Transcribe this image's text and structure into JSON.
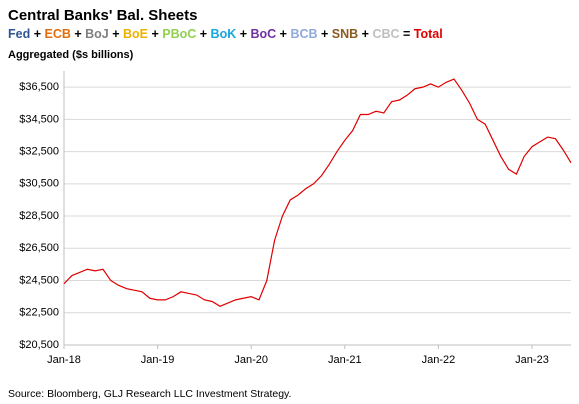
{
  "chart_data": {
    "type": "line",
    "title": "Central Banks' Bal. Sheets",
    "legend_items": [
      {
        "name": "Fed",
        "color": "#2f5597"
      },
      {
        "name": "ECB",
        "color": "#e46c0a"
      },
      {
        "name": "BoJ",
        "color": "#7f7f7f"
      },
      {
        "name": "BoE",
        "color": "#f0b000"
      },
      {
        "name": "PBoC",
        "color": "#92d050"
      },
      {
        "name": "BoK",
        "color": "#16a6e0"
      },
      {
        "name": "BoC",
        "color": "#7030a0"
      },
      {
        "name": "BCB",
        "color": "#8faadc"
      },
      {
        "name": "SNB",
        "color": "#8b5a1e"
      },
      {
        "name": "CBC",
        "color": "#c0c0c0"
      }
    ],
    "joiner": "+",
    "equals": "=",
    "y_label": "Aggregated ($s billions)",
    "source": "Source: Bloomberg, GLJ Research LLC Investment Strategy.",
    "x": [
      "2018-01",
      "2018-02",
      "2018-03",
      "2018-04",
      "2018-05",
      "2018-06",
      "2018-07",
      "2018-08",
      "2018-09",
      "2018-10",
      "2018-11",
      "2018-12",
      "2019-01",
      "2019-02",
      "2019-03",
      "2019-04",
      "2019-05",
      "2019-06",
      "2019-07",
      "2019-08",
      "2019-09",
      "2019-10",
      "2019-11",
      "2019-12",
      "2020-01",
      "2020-02",
      "2020-03",
      "2020-04",
      "2020-05",
      "2020-06",
      "2020-07",
      "2020-08",
      "2020-09",
      "2020-10",
      "2020-11",
      "2020-12",
      "2021-01",
      "2021-02",
      "2021-03",
      "2021-04",
      "2021-05",
      "2021-06",
      "2021-07",
      "2021-08",
      "2021-09",
      "2021-10",
      "2021-11",
      "2021-12",
      "2022-01",
      "2022-02",
      "2022-03",
      "2022-04",
      "2022-05",
      "2022-06",
      "2022-07",
      "2022-08",
      "2022-09",
      "2022-10",
      "2022-11",
      "2022-12",
      "2023-01",
      "2023-02",
      "2023-03",
      "2023-04",
      "2023-05",
      "2023-06"
    ],
    "series": [
      {
        "name": "Total",
        "color": "#e00000",
        "values": [
          24300,
          24800,
          25000,
          25200,
          25100,
          25200,
          24500,
          24200,
          24000,
          23900,
          23800,
          23400,
          23300,
          23300,
          23500,
          23800,
          23700,
          23600,
          23300,
          23200,
          22900,
          23100,
          23300,
          23400,
          23500,
          23300,
          24500,
          27000,
          28500,
          29500,
          29800,
          30200,
          30500,
          31000,
          31700,
          32500,
          33200,
          33800,
          34800,
          34800,
          35000,
          34900,
          35600,
          35700,
          36000,
          36400,
          36500,
          36700,
          36500,
          36800,
          37000,
          36300,
          35500,
          34500,
          34200,
          33200,
          32200,
          31400,
          31100,
          32200,
          32800,
          33100,
          33400,
          33300,
          32600,
          31800
        ]
      }
    ],
    "xlim": [
      "2018-01",
      "2023-06"
    ],
    "xticks": [
      {
        "value": "2018-01",
        "label": "Jan-18"
      },
      {
        "value": "2019-01",
        "label": "Jan-19"
      },
      {
        "value": "2020-01",
        "label": "Jan-20"
      },
      {
        "value": "2021-01",
        "label": "Jan-21"
      },
      {
        "value": "2022-01",
        "label": "Jan-22"
      },
      {
        "value": "2023-01",
        "label": "Jan-23"
      }
    ],
    "ylim": [
      20500,
      37500
    ],
    "yticks": [
      {
        "value": 20500,
        "label": "$20,500"
      },
      {
        "value": 22500,
        "label": "$22,500"
      },
      {
        "value": 24500,
        "label": "$24,500"
      },
      {
        "value": 26500,
        "label": "$26,500"
      },
      {
        "value": 28500,
        "label": "$28,500"
      },
      {
        "value": 30500,
        "label": "$30,500"
      },
      {
        "value": 32500,
        "label": "$32,500"
      },
      {
        "value": 34500,
        "label": "$34,500"
      },
      {
        "value": 36500,
        "label": "$36,500"
      }
    ],
    "grid": true
  }
}
